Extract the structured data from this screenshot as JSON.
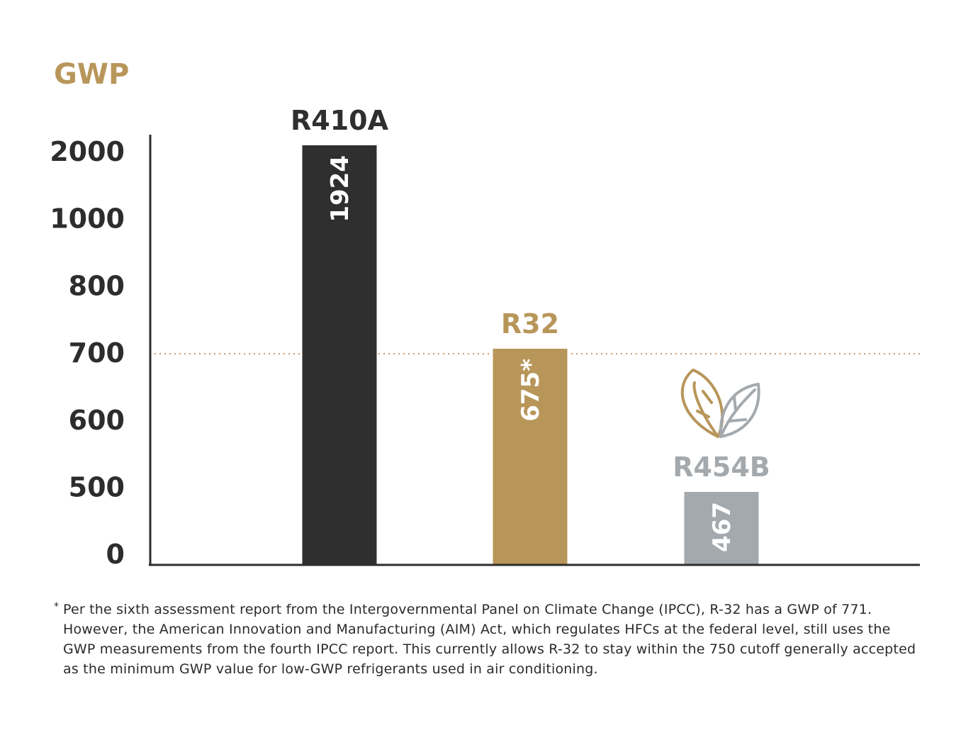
{
  "colors": {
    "gold": "#b8965a",
    "dark": "#2f2f2f",
    "gray": "#a4a9ad",
    "axis": "#2d2d2d",
    "threshold_line": "#c9966a"
  },
  "chart_data": {
    "type": "bar",
    "ylabel": "GWP",
    "y_ticks": [
      "2000",
      "1000",
      "800",
      "700",
      "600",
      "500",
      "0"
    ],
    "y_scale": "non-linear (categorical spacing)",
    "grid": false,
    "threshold": {
      "y": 700,
      "style": "dotted"
    },
    "categories": [
      "R410A",
      "R32",
      "R454B"
    ],
    "values": [
      1924,
      675,
      467
    ],
    "value_labels": [
      "1924",
      "675*",
      "467"
    ],
    "category_colors": [
      "#2f2f2f",
      "#b8965a",
      "#a4a9ad"
    ],
    "annotations": [
      {
        "category": "R454B",
        "icon": "leaf-icon"
      }
    ]
  },
  "footnote": {
    "marker": "*",
    "text": "Per the sixth assessment report from the Intergovernmental Panel on Climate Change (IPCC), R-32 has a GWP of 771. However, the American Innovation and Manufacturing (AIM) Act, which regulates HFCs at the federal level, still uses the GWP measurements from the fourth IPCC report. This currently allows R-32 to stay within the 750 cutoff generally accepted as the minimum GWP value for low-GWP refrigerants used in air conditioning."
  }
}
